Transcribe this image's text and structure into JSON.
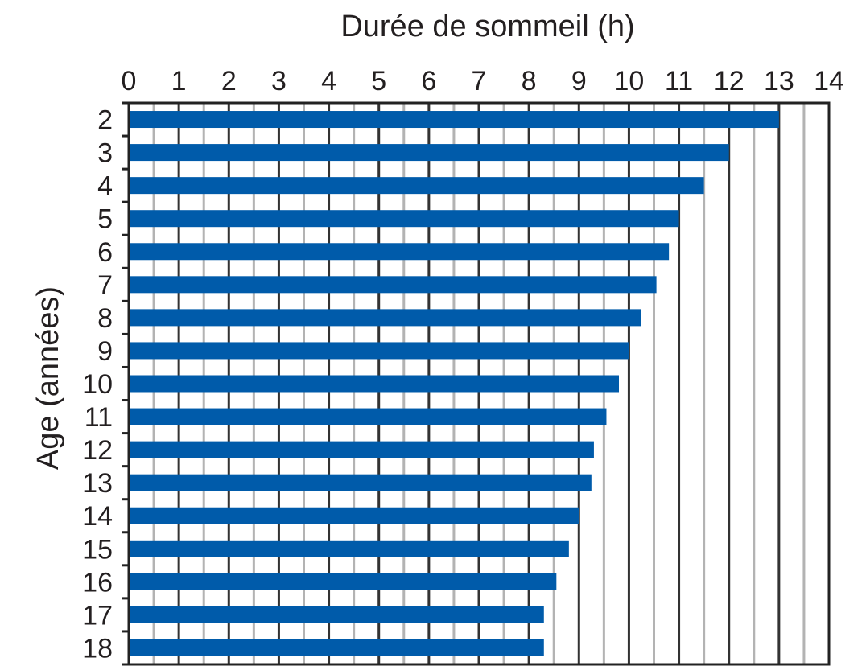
{
  "chart_data": {
    "type": "bar",
    "orientation": "horizontal",
    "xlabel": "Durée de sommeil (h)",
    "ylabel": "Age (années)",
    "categories": [
      "2",
      "3",
      "4",
      "5",
      "6",
      "7",
      "8",
      "9",
      "10",
      "11",
      "12",
      "13",
      "14",
      "15",
      "16",
      "17",
      "18"
    ],
    "values": [
      13,
      12,
      11.5,
      11,
      10.8,
      10.55,
      10.25,
      10,
      9.8,
      9.55,
      9.3,
      9.25,
      9,
      8.8,
      8.55,
      8.3,
      8.3
    ],
    "xlim": [
      0,
      14
    ],
    "xticks": [
      "0",
      "1",
      "2",
      "3",
      "4",
      "5",
      "6",
      "7",
      "8",
      "9",
      "10",
      "11",
      "12",
      "13",
      "14"
    ],
    "x_axis_position": "top",
    "grid": true,
    "legend": "none",
    "colors": {
      "bar": "#005baa",
      "major_grid": "#333333",
      "minor_grid": "#b3b3b3",
      "text": "#231f20"
    }
  }
}
